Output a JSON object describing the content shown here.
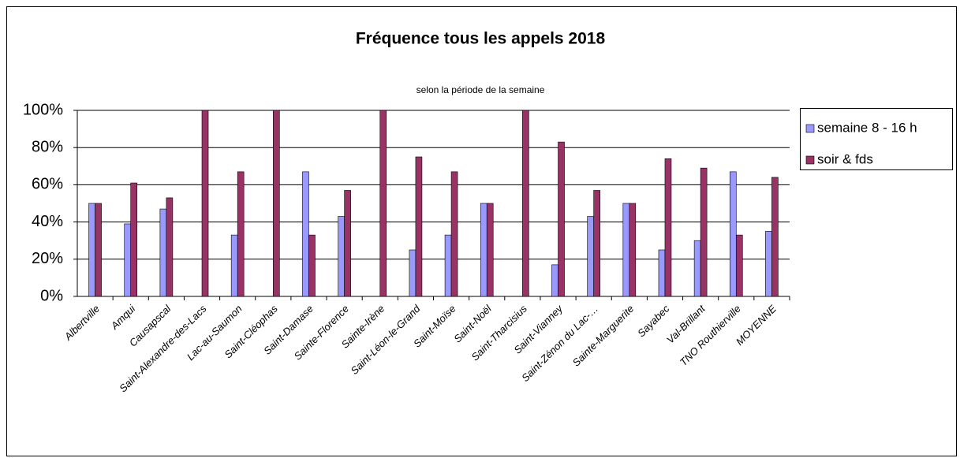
{
  "chart_data": {
    "type": "bar",
    "title": "Fréquence tous les appels 2018",
    "subtitle": "selon la période de la semaine",
    "categories": [
      "Albertville",
      "Amqui",
      "Causapscal",
      "Saint-Alexandre-des-Lacs",
      "Lac-au-Saumon",
      "Saint-Cléophas",
      "Saint-Damase",
      "Sainte-Florence",
      "Sainte-Irène",
      "Saint-Léon-le-Grand",
      "Saint-Moïse",
      "Saint-Noël",
      "Saint-Tharcisius",
      "Saint-Vianney",
      "Saint-Zénon du Lac-…",
      "Sainte-Marguerite",
      "Sayabec",
      "Val-Brillant",
      "TNO Routhierville",
      "MOYENNE"
    ],
    "series": [
      {
        "name": "semaine 8 - 16 h",
        "color": "#9999ff",
        "values": [
          50,
          39,
          47,
          0,
          33,
          0,
          67,
          43,
          0,
          25,
          33,
          50,
          0,
          17,
          43,
          50,
          25,
          30,
          67,
          35
        ]
      },
      {
        "name": "soir & fds",
        "color": "#993366",
        "values": [
          50,
          61,
          53,
          100,
          67,
          100,
          33,
          57,
          100,
          75,
          67,
          50,
          100,
          83,
          57,
          50,
          74,
          69,
          33,
          64
        ]
      }
    ],
    "ylim": [
      0,
      100
    ],
    "yticks": [
      {
        "value": 0,
        "label": "0%"
      },
      {
        "value": 20,
        "label": "20%"
      },
      {
        "value": 40,
        "label": "40%"
      },
      {
        "value": 60,
        "label": "60%"
      },
      {
        "value": 80,
        "label": "80%"
      },
      {
        "value": 100,
        "label": "100%"
      }
    ],
    "grid": true,
    "legend": "right"
  }
}
